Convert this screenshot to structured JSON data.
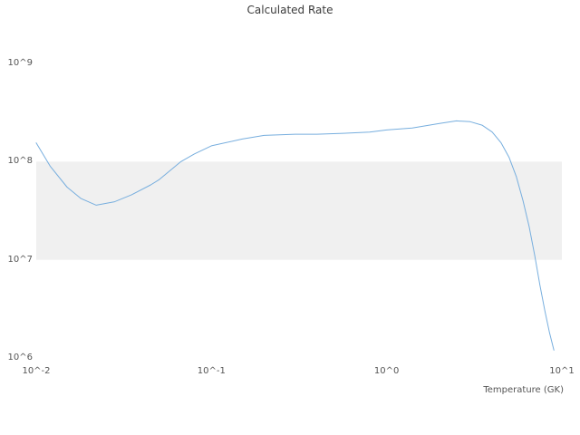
{
  "chart_data": {
    "type": "line",
    "title": "Calculated Rate",
    "xlabel": "Temperature (GK)",
    "ylabel": "",
    "x_scale": "log",
    "y_scale": "log",
    "xlim": [
      0.01,
      10
    ],
    "ylim": [
      1000000.0,
      1000000000.0
    ],
    "x_ticks": [
      0.01,
      0.1,
      1,
      10
    ],
    "y_ticks": [
      1000000.0,
      10000000.0,
      100000000.0,
      1000000000.0
    ],
    "x_tick_labels": [
      "10^-2",
      "10^-1",
      "10^0",
      "10^1"
    ],
    "y_tick_labels": [
      "10^6",
      "10^7",
      "10^8",
      "10^9"
    ],
    "grid": "off",
    "legend": "none",
    "highlight_band": {
      "ymin": 10000000.0,
      "ymax": 100000000.0,
      "color": "#f0f0f0"
    },
    "line_color": "#77aede",
    "series": [
      {
        "name": "Calculated Rate",
        "x": [
          0.01,
          0.012,
          0.015,
          0.018,
          0.022,
          0.028,
          0.035,
          0.045,
          0.05,
          0.067,
          0.08,
          0.1,
          0.15,
          0.2,
          0.3,
          0.4,
          0.6,
          0.8,
          1.0,
          1.4,
          2.0,
          2.5,
          3.0,
          3.5,
          4.0,
          4.5,
          5.0,
          5.5,
          6.0,
          6.5,
          7.0,
          7.5,
          8.0,
          8.5,
          9.0
        ],
        "y": [
          155000000.0,
          90000000.0,
          55000000.0,
          42000000.0,
          36000000.0,
          39000000.0,
          46000000.0,
          58000000.0,
          65000000.0,
          100000000.0,
          120000000.0,
          145000000.0,
          170000000.0,
          185000000.0,
          190000000.0,
          190000000.0,
          195000000.0,
          200000000.0,
          210000000.0,
          220000000.0,
          245000000.0,
          260000000.0,
          255000000.0,
          235000000.0,
          200000000.0,
          155000000.0,
          110000000.0,
          70000000.0,
          40000000.0,
          22000000.0,
          11000000.0,
          5500000.0,
          3000000.0,
          1800000.0,
          1200000.0
        ]
      }
    ]
  }
}
